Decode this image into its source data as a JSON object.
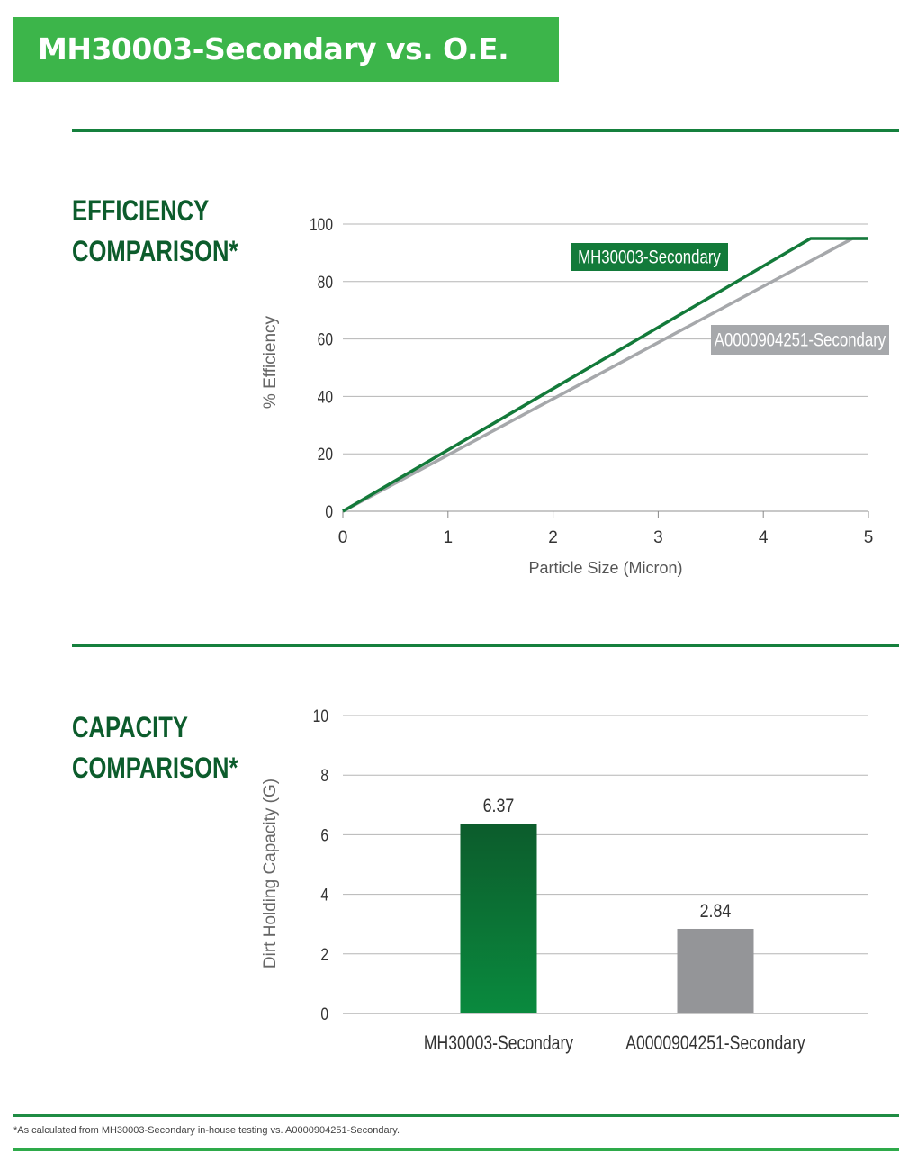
{
  "header": {
    "title": "MH30003-Secondary vs. O.E."
  },
  "sections": {
    "efficiency": {
      "line1": "EFFICIENCY",
      "line2": "COMPARISON*"
    },
    "capacity": {
      "line1": "CAPACITY",
      "line2": "COMPARISON*"
    }
  },
  "colors": {
    "green": "#137a3a",
    "gray": "#a6a8ab",
    "banner": "#3cb54a"
  },
  "chart_data": [
    {
      "type": "line",
      "title": "",
      "xlabel": "Particle Size (Micron)",
      "ylabel": "% Efficiency",
      "xlim": [
        0,
        5
      ],
      "ylim": [
        0,
        100
      ],
      "xticks": [
        0,
        1,
        2,
        3,
        4,
        5
      ],
      "yticks": [
        0,
        20,
        40,
        60,
        80,
        100
      ],
      "grid": true,
      "series": [
        {
          "name": "MH30003-Secondary",
          "x": [
            0,
            4.45,
            5
          ],
          "y": [
            0,
            95,
            95
          ]
        },
        {
          "name": "A0000904251-Secondary",
          "x": [
            0,
            4.85,
            5
          ],
          "y": [
            0,
            95,
            95
          ]
        }
      ]
    },
    {
      "type": "bar",
      "title": "",
      "xlabel": "",
      "ylabel": "Dirt Holding Capacity (G)",
      "ylim": [
        0,
        10
      ],
      "yticks": [
        0,
        2,
        4,
        6,
        8,
        10
      ],
      "grid": true,
      "categories": [
        "MH30003-Secondary",
        "A0000904251-Secondary"
      ],
      "values": [
        6.37,
        2.84
      ],
      "value_labels": [
        "6.37",
        "2.84"
      ]
    }
  ],
  "footnote": "*As calculated from MH30003-Secondary in-house testing vs. A0000904251-Secondary."
}
